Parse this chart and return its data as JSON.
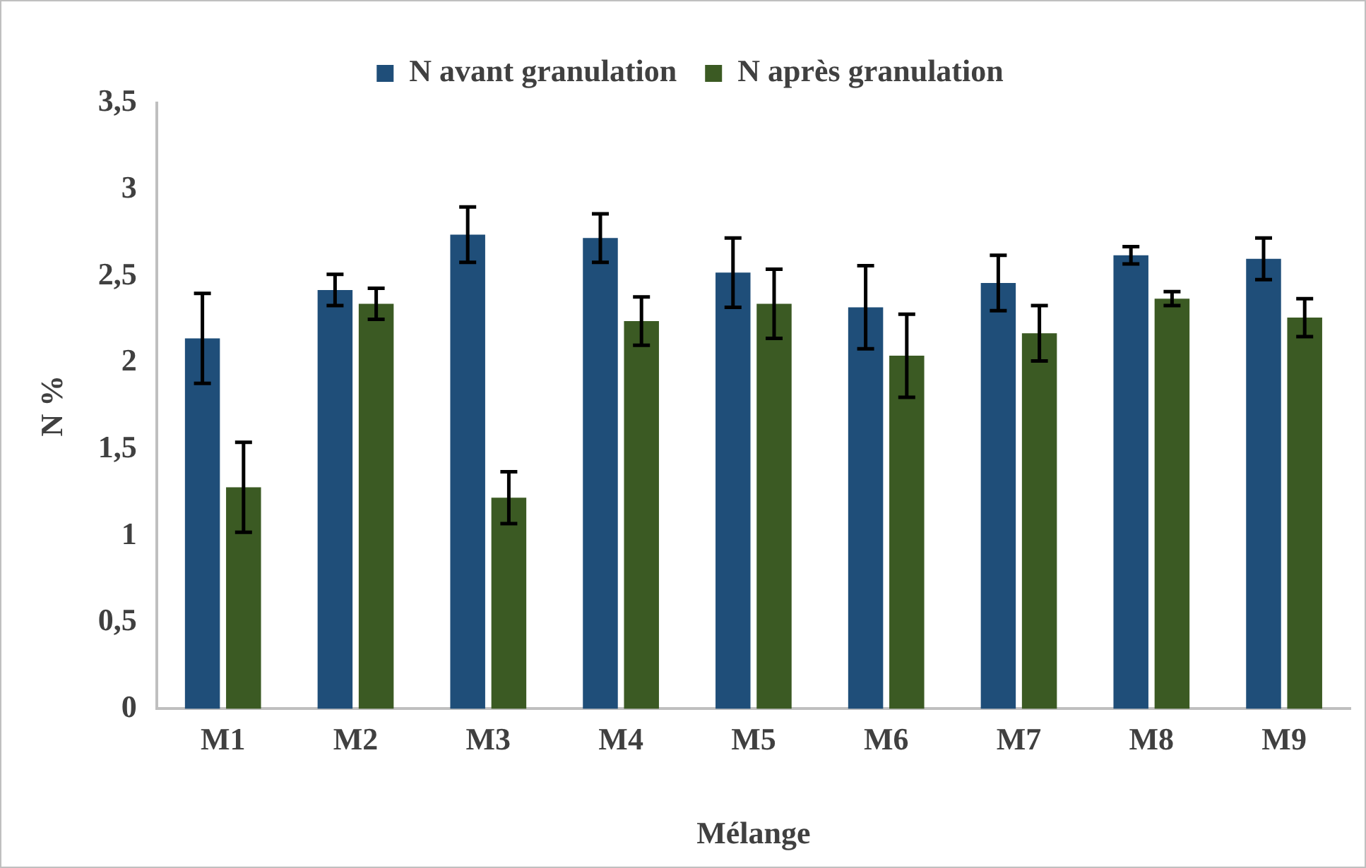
{
  "chart_data": {
    "type": "bar",
    "xlabel": "Mélange",
    "ylabel": "N %",
    "categories": [
      "M1",
      "M2",
      "M3",
      "M4",
      "M5",
      "M6",
      "M7",
      "M8",
      "M9"
    ],
    "series": [
      {
        "name": "N avant granulation",
        "color": "#1f4e79",
        "values": [
          2.14,
          2.42,
          2.74,
          2.72,
          2.52,
          2.32,
          2.46,
          2.62,
          2.6
        ],
        "errors": [
          0.26,
          0.09,
          0.16,
          0.14,
          0.2,
          0.24,
          0.16,
          0.05,
          0.12
        ]
      },
      {
        "name": "N après granulation",
        "color": "#3b5a23",
        "values": [
          1.28,
          2.34,
          1.22,
          2.24,
          2.34,
          2.04,
          2.17,
          2.37,
          2.26
        ],
        "errors": [
          0.26,
          0.09,
          0.15,
          0.14,
          0.2,
          0.24,
          0.16,
          0.04,
          0.11
        ]
      }
    ],
    "ylim": [
      0,
      3.5
    ],
    "yticks": [
      0,
      {
        "value": 0.5,
        "label": "0,5"
      },
      1,
      {
        "value": 1.5,
        "label": "1,5"
      },
      2,
      {
        "value": 2.5,
        "label": "2,5"
      },
      3,
      {
        "value": 3.5,
        "label": "3,5"
      }
    ],
    "grid": false,
    "legend": "top"
  }
}
